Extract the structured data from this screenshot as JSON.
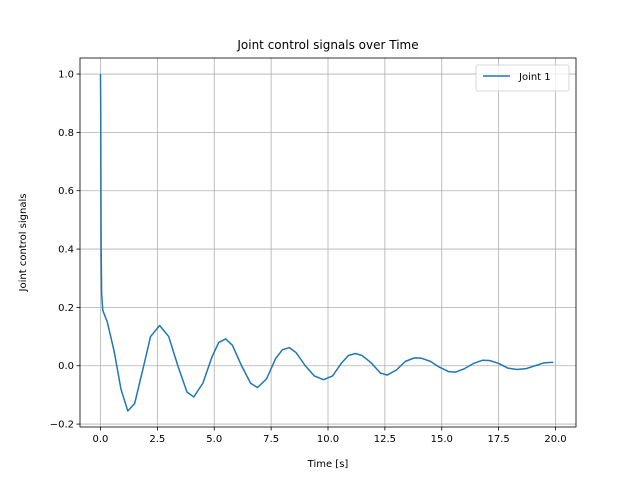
{
  "chart_data": {
    "type": "line",
    "title": "Joint control signals over Time",
    "xlabel": "Time [s]",
    "ylabel": "Joint control signals",
    "xlim": [
      -0.9,
      20.9
    ],
    "ylim": [
      -0.21,
      1.055
    ],
    "xticks": [
      0.0,
      2.5,
      5.0,
      7.5,
      10.0,
      12.5,
      15.0,
      17.5,
      20.0
    ],
    "xtick_labels": [
      "0.0",
      "2.5",
      "5.0",
      "7.5",
      "10.0",
      "12.5",
      "15.0",
      "17.5",
      "20.0"
    ],
    "yticks": [
      -0.2,
      0.0,
      0.2,
      0.4,
      0.6,
      0.8,
      1.0
    ],
    "ytick_labels": [
      "−0.2",
      "0.0",
      "0.2",
      "0.4",
      "0.6",
      "0.8",
      "1.0"
    ],
    "grid": true,
    "legend_position": "top-right",
    "series": [
      {
        "name": "Joint 1",
        "color": "#1f77b4",
        "x": [
          0.0,
          0.01,
          0.02,
          0.03,
          0.05,
          0.1,
          0.3,
          0.6,
          0.9,
          1.2,
          1.5,
          1.9,
          2.2,
          2.6,
          3.0,
          3.4,
          3.8,
          4.1,
          4.5,
          4.9,
          5.2,
          5.5,
          5.8,
          6.2,
          6.6,
          6.9,
          7.3,
          7.7,
          8.0,
          8.3,
          8.6,
          9.0,
          9.4,
          9.8,
          10.2,
          10.6,
          10.9,
          11.2,
          11.5,
          11.9,
          12.3,
          12.6,
          13.0,
          13.4,
          13.8,
          14.1,
          14.5,
          14.9,
          15.3,
          15.6,
          16.0,
          16.4,
          16.8,
          17.1,
          17.5,
          17.9,
          18.3,
          18.7,
          19.1,
          19.5,
          19.9
        ],
        "y": [
          1.0,
          0.9,
          0.6,
          0.4,
          0.25,
          0.19,
          0.15,
          0.05,
          -0.08,
          -0.155,
          -0.13,
          0.0,
          0.1,
          0.138,
          0.1,
          0.0,
          -0.09,
          -0.107,
          -0.06,
          0.03,
          0.08,
          0.092,
          0.07,
          0.0,
          -0.06,
          -0.075,
          -0.045,
          0.025,
          0.055,
          0.062,
          0.045,
          0.0,
          -0.035,
          -0.048,
          -0.035,
          0.01,
          0.035,
          0.042,
          0.035,
          0.01,
          -0.025,
          -0.032,
          -0.015,
          0.015,
          0.027,
          0.026,
          0.015,
          -0.005,
          -0.02,
          -0.022,
          -0.01,
          0.008,
          0.019,
          0.018,
          0.008,
          -0.008,
          -0.013,
          -0.01,
          0.0,
          0.01,
          0.012
        ]
      }
    ]
  }
}
